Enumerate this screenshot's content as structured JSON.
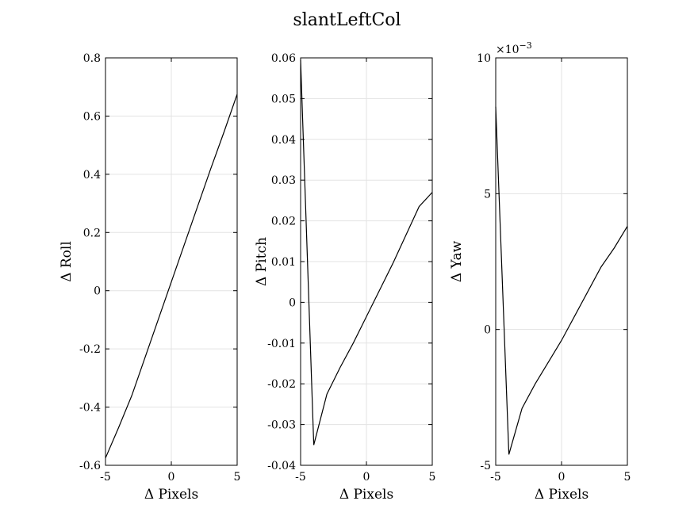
{
  "figure_title": "slantLeftCol",
  "chart_data": [
    {
      "type": "line",
      "xlabel": "Δ Pixels",
      "ylabel": "Δ Roll",
      "xlim": [
        -5,
        5
      ],
      "ylim": [
        -0.6,
        0.8
      ],
      "xticks": [
        -5,
        0,
        5
      ],
      "xtick_labels": [
        "-5",
        "0",
        "5"
      ],
      "yticks": [
        -0.6,
        -0.4,
        -0.2,
        0,
        0.2,
        0.4,
        0.6,
        0.8
      ],
      "ytick_labels": [
        "-0.6",
        "-0.4",
        "-0.2",
        "0",
        "0.2",
        "0.4",
        "0.6",
        "0.8"
      ],
      "exponent_label": "",
      "grid": true,
      "series": [
        {
          "x": [
            -5,
            -4,
            -3,
            -2,
            -1,
            0,
            1,
            2,
            3,
            4,
            5
          ],
          "y": [
            -0.575,
            -0.47,
            -0.36,
            -0.23,
            -0.1,
            0.03,
            0.16,
            0.29,
            0.42,
            0.545,
            0.675
          ]
        }
      ]
    },
    {
      "type": "line",
      "xlabel": "Δ Pixels",
      "ylabel": "Δ Pitch",
      "xlim": [
        -5,
        5
      ],
      "ylim": [
        -0.04,
        0.06
      ],
      "xticks": [
        -5,
        0,
        5
      ],
      "xtick_labels": [
        "-5",
        "0",
        "5"
      ],
      "yticks": [
        -0.04,
        -0.03,
        -0.02,
        -0.01,
        0,
        0.01,
        0.02,
        0.03,
        0.04,
        0.05,
        0.06
      ],
      "ytick_labels": [
        "-0.04",
        "-0.03",
        "-0.02",
        "-0.01",
        "0",
        "0.01",
        "0.02",
        "0.03",
        "0.04",
        "0.05",
        "0.06"
      ],
      "exponent_label": "",
      "grid": true,
      "series": [
        {
          "x": [
            -5,
            -4,
            -3,
            -2,
            -1,
            0,
            1,
            2,
            3,
            4,
            5
          ],
          "y": [
            0.0595,
            -0.035,
            -0.0225,
            -0.016,
            -0.01,
            -0.0035,
            0.003,
            0.0095,
            0.0165,
            0.0235,
            0.027
          ]
        }
      ]
    },
    {
      "type": "line",
      "xlabel": "Δ Pixels",
      "ylabel": "Δ Yaw",
      "xlim": [
        -5,
        5
      ],
      "ylim": [
        -5,
        10
      ],
      "xticks": [
        -5,
        0,
        5
      ],
      "xtick_labels": [
        "-5",
        "0",
        "5"
      ],
      "yticks": [
        -5,
        0,
        5,
        10
      ],
      "ytick_labels": [
        "-5",
        "0",
        "5",
        "10"
      ],
      "exponent_label": "×10",
      "exponent_power": "−3",
      "grid": true,
      "series": [
        {
          "x": [
            -5,
            -4,
            -3,
            -2,
            -1,
            0,
            1,
            2,
            3,
            4,
            5
          ],
          "y": [
            8.2,
            -4.6,
            -2.9,
            -2.0,
            -1.2,
            -0.4,
            0.5,
            1.4,
            2.3,
            3.0,
            3.8
          ]
        }
      ]
    }
  ]
}
